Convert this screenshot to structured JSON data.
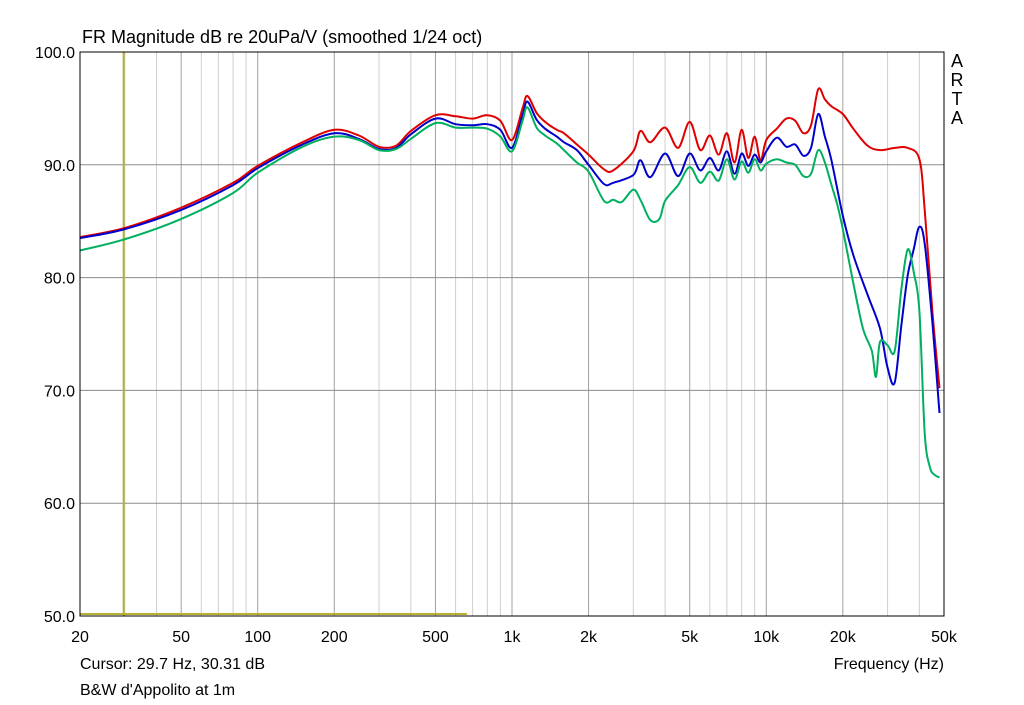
{
  "chart_data": {
    "type": "line",
    "title": "FR Magnitude dB re 20uPa/V (smoothed 1/24 oct)",
    "xlabel": "Frequency (Hz)",
    "x_scale": "log",
    "xlim": [
      20,
      50000
    ],
    "ylim": [
      50,
      100
    ],
    "grid": true,
    "x_tick_labels": [
      {
        "v": 20,
        "t": "20"
      },
      {
        "v": 50,
        "t": "50"
      },
      {
        "v": 100,
        "t": "100"
      },
      {
        "v": 200,
        "t": "200"
      },
      {
        "v": 500,
        "t": "500"
      },
      {
        "v": 1000,
        "t": "1k"
      },
      {
        "v": 2000,
        "t": "2k"
      },
      {
        "v": 5000,
        "t": "5k"
      },
      {
        "v": 10000,
        "t": "10k"
      },
      {
        "v": 20000,
        "t": "20k"
      },
      {
        "v": 50000,
        "t": "50k"
      }
    ],
    "y_tick_labels": [
      {
        "v": 100,
        "t": "100.0"
      },
      {
        "v": 90,
        "t": "90.0"
      },
      {
        "v": 80,
        "t": "80.0"
      },
      {
        "v": 70,
        "t": "70.0"
      },
      {
        "v": 60,
        "t": "60.0"
      },
      {
        "v": 50,
        "t": "50.0"
      }
    ],
    "cursor": {
      "x": 29.7,
      "y": 30.31,
      "color": "#b8b030",
      "line_end_x": 250
    },
    "series": [
      {
        "color": "#e00000",
        "x": [
          20,
          30,
          50,
          80,
          100,
          150,
          200,
          250,
          300,
          350,
          400,
          500,
          600,
          700,
          800,
          900,
          1000,
          1100,
          1150,
          1250,
          1350,
          1500,
          1600,
          1800,
          2000,
          2300,
          2500,
          3000,
          3200,
          3500,
          4000,
          4500,
          5000,
          5500,
          6000,
          6500,
          7000,
          7500,
          8000,
          8500,
          9000,
          9500,
          10000,
          11000,
          12000,
          13000,
          14000,
          15000,
          16000,
          17000,
          18000,
          20000,
          22000,
          25000,
          28000,
          32000,
          36000,
          40000,
          42000,
          45000,
          48000
        ],
        "y": [
          83.6,
          84.4,
          86.2,
          88.4,
          89.9,
          92.0,
          93.1,
          92.6,
          91.6,
          91.7,
          93.0,
          94.4,
          94.3,
          94.1,
          94.4,
          93.9,
          92.2,
          95.0,
          96.1,
          94.6,
          93.8,
          93.1,
          92.8,
          91.8,
          90.9,
          89.6,
          89.5,
          91.2,
          93.0,
          92.0,
          93.3,
          91.5,
          93.8,
          91.3,
          92.6,
          90.9,
          92.8,
          90.2,
          93.1,
          90.6,
          92.5,
          90.4,
          92.2,
          93.2,
          94.1,
          93.9,
          92.8,
          93.5,
          96.7,
          95.8,
          95.2,
          94.5,
          93.2,
          91.7,
          91.3,
          91.5,
          91.5,
          90.5,
          86.0,
          77.0,
          70.2
        ]
      },
      {
        "color": "#0000cc",
        "x": [
          20,
          30,
          50,
          80,
          100,
          150,
          200,
          250,
          300,
          350,
          400,
          500,
          600,
          700,
          800,
          900,
          1000,
          1100,
          1150,
          1250,
          1350,
          1500,
          1600,
          1800,
          2000,
          2300,
          2500,
          3000,
          3200,
          3500,
          4000,
          4500,
          5000,
          5500,
          6000,
          6500,
          7000,
          7500,
          8000,
          8500,
          9000,
          9500,
          10000,
          11000,
          12000,
          13000,
          14000,
          15000,
          16000,
          17000,
          18000,
          20000,
          22000,
          25000,
          28000,
          30000,
          32000,
          34000,
          36000,
          38000,
          40000,
          42000,
          45000,
          48000
        ],
        "y": [
          83.5,
          84.3,
          86.0,
          88.2,
          89.7,
          91.8,
          92.8,
          92.3,
          91.4,
          91.5,
          92.7,
          94.1,
          93.6,
          93.5,
          93.6,
          93.1,
          91.5,
          94.4,
          95.6,
          94.0,
          93.2,
          92.5,
          92.0,
          91.3,
          90.0,
          88.3,
          88.4,
          89.1,
          90.4,
          88.9,
          91.0,
          89.0,
          91.0,
          89.5,
          90.6,
          89.5,
          91.2,
          89.2,
          91.0,
          89.9,
          90.9,
          90.2,
          91.2,
          92.4,
          91.6,
          91.8,
          90.8,
          91.5,
          94.5,
          92.5,
          90.5,
          85.5,
          82.0,
          78.5,
          75.5,
          72.0,
          70.7,
          75.8,
          80.2,
          82.5,
          84.5,
          83.0,
          76.0,
          68.0
        ]
      },
      {
        "color": "#00b060",
        "x": [
          20,
          30,
          50,
          80,
          100,
          150,
          200,
          250,
          300,
          350,
          400,
          500,
          600,
          700,
          800,
          900,
          1000,
          1100,
          1150,
          1250,
          1350,
          1500,
          1600,
          1800,
          2000,
          2300,
          2500,
          2700,
          3000,
          3200,
          3500,
          3800,
          4000,
          4500,
          5000,
          5500,
          6000,
          6500,
          7000,
          7500,
          8000,
          8500,
          9000,
          9500,
          10000,
          11000,
          12000,
          13000,
          14000,
          15000,
          16000,
          17000,
          18000,
          19000,
          20000,
          22000,
          24000,
          26000,
          27000,
          28000,
          30000,
          32000,
          34000,
          36000,
          38000,
          40000,
          42000,
          44000,
          46000,
          48000
        ],
        "y": [
          82.4,
          83.4,
          85.2,
          87.5,
          89.3,
          91.6,
          92.5,
          92.2,
          91.3,
          91.4,
          92.3,
          93.7,
          93.3,
          93.3,
          93.2,
          92.5,
          91.2,
          93.9,
          95.1,
          93.3,
          92.6,
          91.9,
          91.3,
          90.2,
          89.4,
          86.8,
          86.9,
          86.7,
          87.8,
          86.9,
          85.1,
          85.2,
          86.8,
          88.2,
          89.8,
          88.4,
          89.4,
          88.6,
          90.5,
          88.7,
          90.3,
          89.3,
          90.5,
          89.5,
          90.1,
          90.5,
          90.2,
          90.0,
          89.0,
          89.2,
          91.3,
          90.2,
          88.3,
          86.5,
          84.3,
          79.5,
          75.5,
          73.5,
          71.2,
          74.3,
          74.0,
          73.5,
          79.0,
          82.5,
          80.5,
          77.0,
          66.2,
          63.2,
          62.5,
          62.3
        ]
      }
    ]
  },
  "cursor_readout": "Cursor: 29.7 Hz, 30.31 dB",
  "caption": "B&W d'Appolito at 1m",
  "brand_letters": [
    "A",
    "R",
    "T",
    "A"
  ]
}
